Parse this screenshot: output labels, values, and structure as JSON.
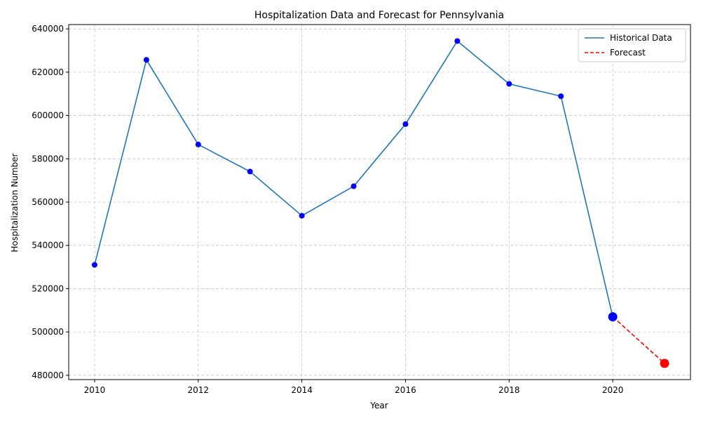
{
  "chart_data": {
    "type": "line",
    "title": "Hospitalization Data and Forecast for Pennsylvania",
    "xlabel": "Year",
    "ylabel": "Hospitalization Number",
    "xlim": [
      2009.5,
      2021.5
    ],
    "ylim": [
      478000,
      642000
    ],
    "x_ticks": [
      2010,
      2012,
      2014,
      2016,
      2018,
      2020
    ],
    "y_ticks": [
      480000,
      500000,
      520000,
      540000,
      560000,
      580000,
      600000,
      620000,
      640000
    ],
    "grid": true,
    "legend_position": "top-right",
    "series": [
      {
        "name": "Historical Data",
        "style": "solid",
        "color": "#1f77b4",
        "marker_color": "#0000ff",
        "x": [
          2010,
          2011,
          2012,
          2013,
          2014,
          2015,
          2016,
          2017,
          2018,
          2019,
          2020
        ],
        "y": [
          531000,
          625700,
          586600,
          574100,
          553700,
          567300,
          596000,
          634400,
          614600,
          608900,
          507000
        ]
      },
      {
        "name": "Forecast",
        "style": "dashed",
        "color": "#ff0000",
        "marker_color": "#ff0000",
        "x": [
          2020,
          2021
        ],
        "y": [
          507000,
          485500
        ]
      }
    ]
  }
}
